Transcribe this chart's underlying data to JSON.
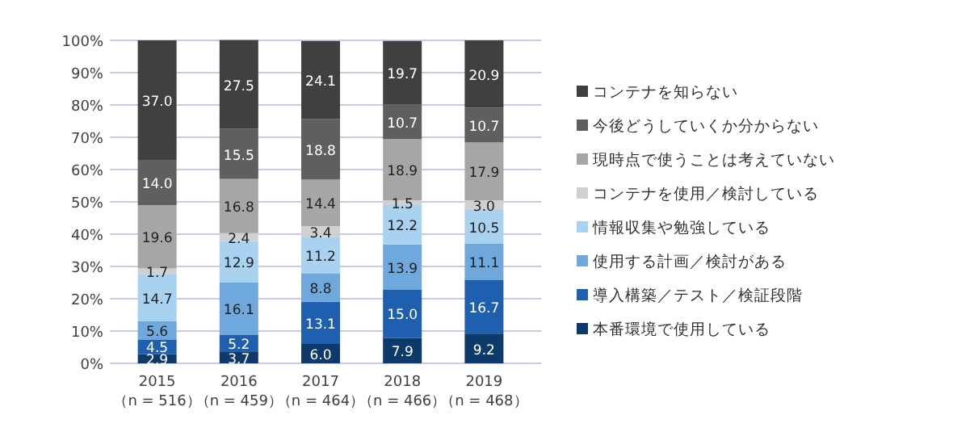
{
  "chart_data": {
    "type": "bar",
    "stacked": true,
    "grid": "y",
    "legend": "right",
    "categories": [
      "2015\n（n = 516）",
      "2016\n（n = 459）",
      "2017\n（n = 464）",
      "2018\n（n = 466）",
      "2019\n（n = 468）"
    ],
    "ylim": [
      0,
      100
    ],
    "yticks": [
      {
        "value": 0,
        "label": "0%"
      },
      {
        "value": 10,
        "label": "10%"
      },
      {
        "value": 20,
        "label": "20%"
      },
      {
        "value": 30,
        "label": "30%"
      },
      {
        "value": 40,
        "label": "40%"
      },
      {
        "value": 50,
        "label": "50%"
      },
      {
        "value": 60,
        "label": "60%"
      },
      {
        "value": 70,
        "label": "70%"
      },
      {
        "value": 80,
        "label": "80%"
      },
      {
        "value": 90,
        "label": "90%"
      },
      {
        "value": 100,
        "label": "100%"
      }
    ],
    "series": [
      {
        "name": "本番環境で使用している",
        "color": "#0d3a6b",
        "values": [
          2.9,
          3.7,
          6.0,
          7.9,
          9.2
        ],
        "value_labels": [
          "2.9",
          "3.7",
          "6.0",
          "7.9",
          "9.2"
        ]
      },
      {
        "name": "導入構築／テスト／検証段階",
        "color": "#1f5fb0",
        "values": [
          4.5,
          5.2,
          13.1,
          15.0,
          16.7
        ],
        "value_labels": [
          "4.5",
          "5.2",
          "13.1",
          "15.0",
          "16.7"
        ]
      },
      {
        "name": "使用する計画／検討がある",
        "color": "#6fa8dc",
        "values": [
          5.6,
          16.1,
          8.8,
          13.9,
          11.1
        ],
        "value_labels": [
          "5.6",
          "16.1",
          "8.8",
          "13.9",
          "11.1"
        ]
      },
      {
        "name": "情報収集や勉強している",
        "color": "#a9d1f0",
        "values": [
          14.7,
          12.9,
          11.2,
          12.2,
          10.5
        ],
        "value_labels": [
          "14.7",
          "12.9",
          "11.2",
          "12.2",
          "10.5"
        ]
      },
      {
        "name": "コンテナを使用／検討している",
        "color": "#d0d0d0",
        "values": [
          1.7,
          2.4,
          3.4,
          1.5,
          3.0
        ],
        "value_labels": [
          "1.7",
          "2.4",
          "3.4",
          "1.5",
          "3.0"
        ]
      },
      {
        "name": "現時点で使うことは考えていない",
        "color": "#a6a6a6",
        "values": [
          19.6,
          16.8,
          14.4,
          18.9,
          17.9
        ],
        "value_labels": [
          "19.6",
          "16.8",
          "14.4",
          "18.9",
          "17.9"
        ]
      },
      {
        "name": "今後どうしていくか分からない",
        "color": "#5f5f5f",
        "values": [
          14.0,
          15.5,
          18.8,
          10.7,
          10.7
        ],
        "value_labels": [
          "14.0",
          "15.5",
          "18.8",
          "10.7",
          "10.7"
        ]
      },
      {
        "name": "コンテナを知らない",
        "color": "#404040",
        "values": [
          37.0,
          27.5,
          24.1,
          19.7,
          20.9
        ],
        "value_labels": [
          "37.0",
          "27.5",
          "24.1",
          "19.7",
          "20.9"
        ]
      }
    ]
  }
}
